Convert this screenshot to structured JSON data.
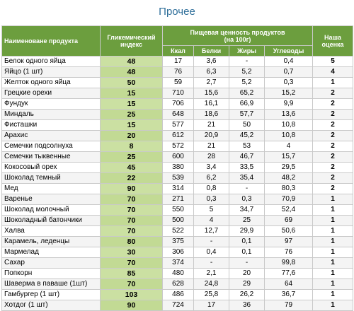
{
  "title": "Прочее",
  "headers": {
    "name": "Наименоване продукта",
    "gi_line1": "Гликемический",
    "gi_line2": "индекс",
    "nutrition_line1": "Пищевая ценность продуктов",
    "nutrition_line2": "(на 100г)",
    "kcal": "Ккал",
    "protein": "Белки",
    "fat": "Жиры",
    "carbs": "Углеводы",
    "score_line1": "Наша",
    "score_line2": "оценка"
  },
  "rows": [
    {
      "name": "Белок одного яйца",
      "gi": "48",
      "kcal": "17",
      "protein": "3,6",
      "fat": "-",
      "carbs": "0,4",
      "score": "5"
    },
    {
      "name": "Яйцо (1 шт)",
      "gi": "48",
      "kcal": "76",
      "protein": "6,3",
      "fat": "5,2",
      "carbs": "0,7",
      "score": "4"
    },
    {
      "name": "Желток одного яйца",
      "gi": "50",
      "kcal": "59",
      "protein": "2,7",
      "fat": "5,2",
      "carbs": "0,3",
      "score": "1"
    },
    {
      "name": "Грецкие орехи",
      "gi": "15",
      "kcal": "710",
      "protein": "15,6",
      "fat": "65,2",
      "carbs": "15,2",
      "score": "2"
    },
    {
      "name": "Фундук",
      "gi": "15",
      "kcal": "706",
      "protein": "16,1",
      "fat": "66,9",
      "carbs": "9,9",
      "score": "2"
    },
    {
      "name": "Миндаль",
      "gi": "25",
      "kcal": "648",
      "protein": "18,6",
      "fat": "57,7",
      "carbs": "13,6",
      "score": "2"
    },
    {
      "name": "Фисташки",
      "gi": "15",
      "kcal": "577",
      "protein": "21",
      "fat": "50",
      "carbs": "10,8",
      "score": "2"
    },
    {
      "name": "Арахис",
      "gi": "20",
      "kcal": "612",
      "protein": "20,9",
      "fat": "45,2",
      "carbs": "10,8",
      "score": "2"
    },
    {
      "name": "Семечки подсолнуха",
      "gi": "8",
      "kcal": "572",
      "protein": "21",
      "fat": "53",
      "carbs": "4",
      "score": "2"
    },
    {
      "name": "Семечки тыквенные",
      "gi": "25",
      "kcal": "600",
      "protein": "28",
      "fat": "46,7",
      "carbs": "15,7",
      "score": "2"
    },
    {
      "name": "Кокосовый орех",
      "gi": "45",
      "kcal": "380",
      "protein": "3,4",
      "fat": "33,5",
      "carbs": "29,5",
      "score": "2"
    },
    {
      "name": "Шоколад темный",
      "gi": "22",
      "kcal": "539",
      "protein": "6,2",
      "fat": "35,4",
      "carbs": "48,2",
      "score": "2"
    },
    {
      "name": "Мед",
      "gi": "90",
      "kcal": "314",
      "protein": "0,8",
      "fat": "-",
      "carbs": "80,3",
      "score": "2"
    },
    {
      "name": "Варенье",
      "gi": "70",
      "kcal": "271",
      "protein": "0,3",
      "fat": "0,3",
      "carbs": "70,9",
      "score": "1"
    },
    {
      "name": "Шоколад молочный",
      "gi": "70",
      "kcal": "550",
      "protein": "5",
      "fat": "34,7",
      "carbs": "52,4",
      "score": "1"
    },
    {
      "name": "Шоколадный батончики",
      "gi": "70",
      "kcal": "500",
      "protein": "4",
      "fat": "25",
      "carbs": "69",
      "score": "1"
    },
    {
      "name": "Халва",
      "gi": "70",
      "kcal": "522",
      "protein": "12,7",
      "fat": "29,9",
      "carbs": "50,6",
      "score": "1"
    },
    {
      "name": "Карамель, леденцы",
      "gi": "80",
      "kcal": "375",
      "protein": "-",
      "fat": "0,1",
      "carbs": "97",
      "score": "1"
    },
    {
      "name": "Мармелад",
      "gi": "30",
      "kcal": "306",
      "protein": "0,4",
      "fat": "0,1",
      "carbs": "76",
      "score": "1"
    },
    {
      "name": "Сахар",
      "gi": "70",
      "kcal": "374",
      "protein": "-",
      "fat": "-",
      "carbs": "99,8",
      "score": "1"
    },
    {
      "name": "Попкорн",
      "gi": "85",
      "kcal": "480",
      "protein": "2,1",
      "fat": "20",
      "carbs": "77,6",
      "score": "1"
    },
    {
      "name": "Шаверма в паваше (1шт)",
      "gi": "70",
      "kcal": "628",
      "protein": "24,8",
      "fat": "29",
      "carbs": "64",
      "score": "1"
    },
    {
      "name": "Гамбургер (1 шт)",
      "gi": "103",
      "kcal": "486",
      "protein": "25,8",
      "fat": "26,2",
      "carbs": "36,7",
      "score": "1"
    },
    {
      "name": "Хотдог (1 шт)",
      "gi": "90",
      "kcal": "724",
      "protein": "17",
      "fat": "36",
      "carbs": "79",
      "score": "1"
    }
  ]
}
